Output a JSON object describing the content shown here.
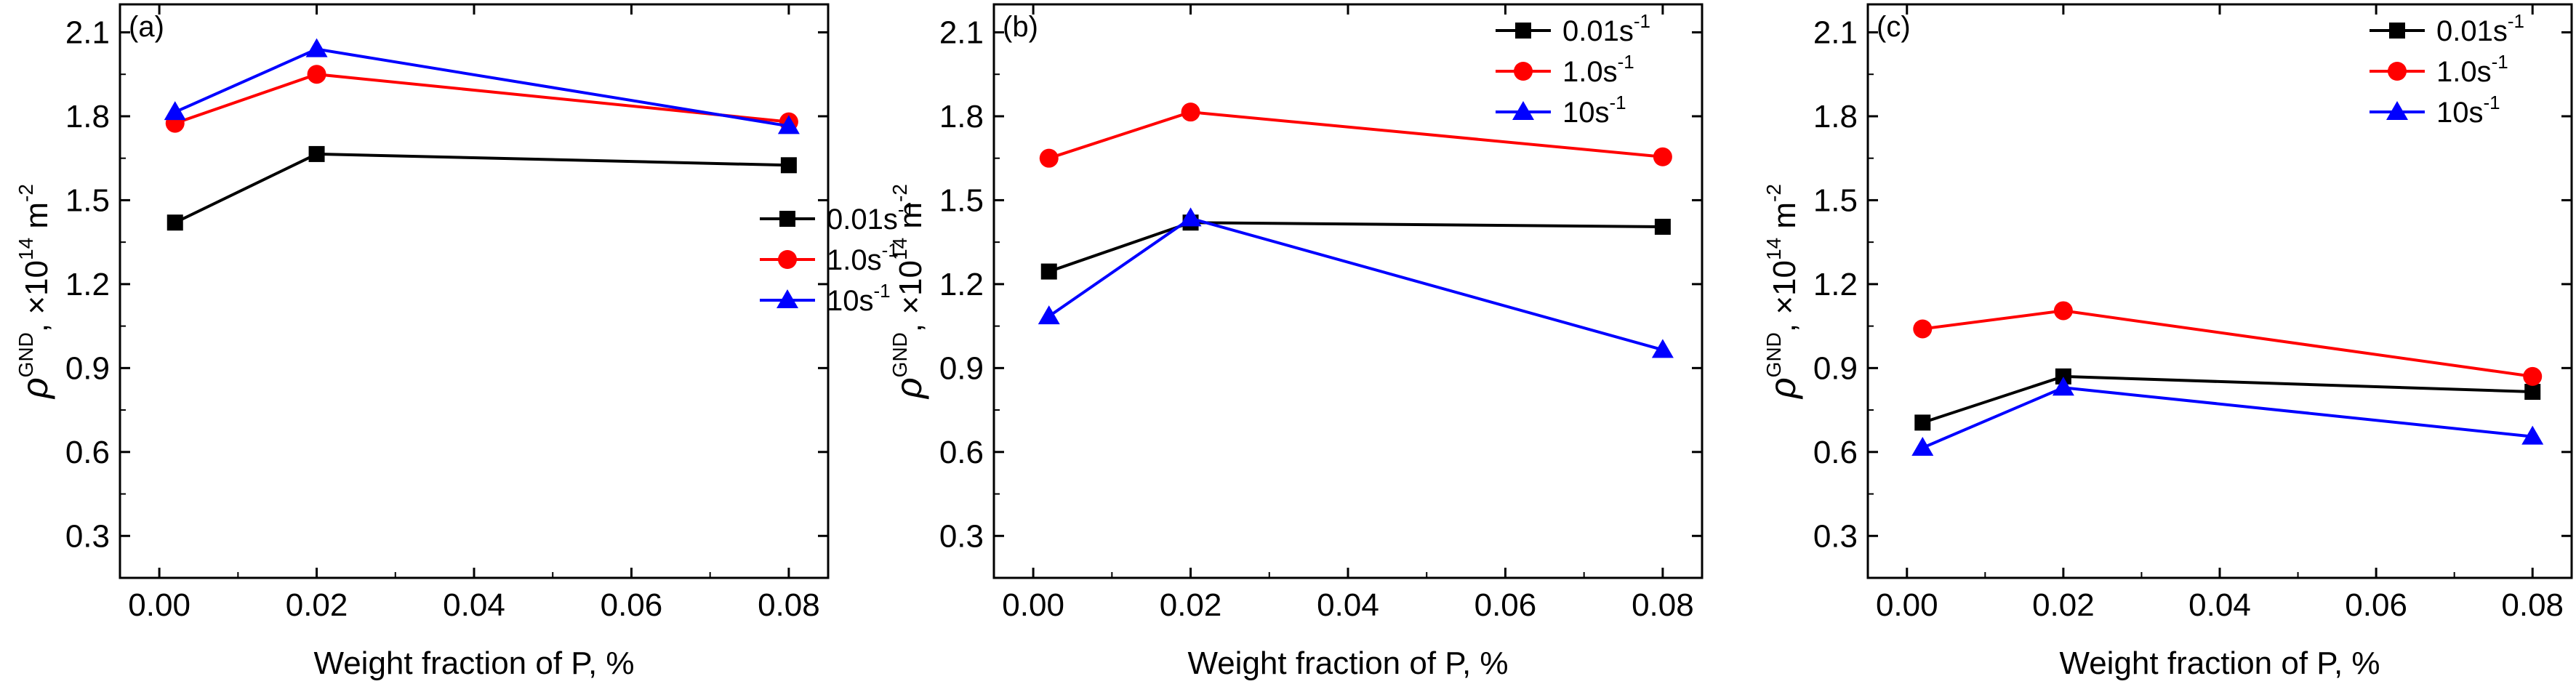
{
  "chart_data": [
    {
      "type": "line",
      "panel_label": "(a)",
      "xlabel": "Weight fraction of P, %",
      "ylabel": "ρGND, ×1014 m-2",
      "ylabel_parts": {
        "sym": "ρ",
        "sup1": "GND",
        "mid": ", ×10",
        "sup2": "14",
        "unit": " m",
        "sup3": "-2"
      },
      "xlim": [
        -0.005,
        0.085
      ],
      "ylim": [
        0.15,
        2.2
      ],
      "x_ticks": [
        "0.00",
        "0.02",
        "0.04",
        "0.06",
        "0.08"
      ],
      "y_ticks": [
        "0.3",
        "0.6",
        "0.9",
        "1.2",
        "1.5",
        "1.8",
        "2.1"
      ],
      "x": [
        0.002,
        0.02,
        0.08
      ],
      "legend_position": "right-middle",
      "series": [
        {
          "name": "0.01s-1",
          "name_base": "0.01s",
          "name_sup": "-1",
          "marker": "square",
          "color": "#000000",
          "values": [
            1.42,
            1.665,
            1.625
          ]
        },
        {
          "name": "1.0s-1",
          "name_base": "1.0s",
          "name_sup": "-1",
          "marker": "circle",
          "color": "#ff0000",
          "values": [
            1.775,
            1.95,
            1.78
          ]
        },
        {
          "name": "10s-1",
          "name_base": "10s",
          "name_sup": "-1",
          "marker": "triangle",
          "color": "#0000ff",
          "values": [
            1.815,
            2.04,
            1.765
          ]
        }
      ]
    },
    {
      "type": "line",
      "panel_label": "(b)",
      "xlabel": "Weight fraction of P, %",
      "ylabel": "ρGND, ×1014 m-2",
      "ylabel_parts": {
        "sym": "ρ",
        "sup1": "GND",
        "mid": ", ×10",
        "sup2": "14",
        "unit": " m",
        "sup3": "-2"
      },
      "xlim": [
        -0.005,
        0.085
      ],
      "ylim": [
        0.15,
        2.2
      ],
      "x_ticks": [
        "0.00",
        "0.02",
        "0.04",
        "0.06",
        "0.08"
      ],
      "y_ticks": [
        "0.3",
        "0.6",
        "0.9",
        "1.2",
        "1.5",
        "1.8",
        "2.1"
      ],
      "x": [
        0.002,
        0.02,
        0.08
      ],
      "legend_position": "top-right",
      "series": [
        {
          "name": "0.01s-1",
          "name_base": "0.01s",
          "name_sup": "-1",
          "marker": "square",
          "color": "#000000",
          "values": [
            1.245,
            1.42,
            1.405
          ]
        },
        {
          "name": "1.0s-1",
          "name_base": "1.0s",
          "name_sup": "-1",
          "marker": "circle",
          "color": "#ff0000",
          "values": [
            1.65,
            1.815,
            1.655
          ]
        },
        {
          "name": "10s-1",
          "name_base": "10s",
          "name_sup": "-1",
          "marker": "triangle",
          "color": "#0000ff",
          "values": [
            1.085,
            1.435,
            0.965
          ]
        }
      ]
    },
    {
      "type": "line",
      "panel_label": "(c)",
      "xlabel": "Weight fraction of P, %",
      "ylabel": "ρGND, ×1014 m-2",
      "ylabel_parts": {
        "sym": "ρ",
        "sup1": "GND",
        "mid": ", ×10",
        "sup2": "14",
        "unit": " m",
        "sup3": "-2"
      },
      "xlim": [
        -0.005,
        0.085
      ],
      "ylim": [
        0.15,
        2.2
      ],
      "x_ticks": [
        "0.00",
        "0.02",
        "0.04",
        "0.06",
        "0.08"
      ],
      "y_ticks": [
        "0.3",
        "0.6",
        "0.9",
        "1.2",
        "1.5",
        "1.8",
        "2.1"
      ],
      "x": [
        0.002,
        0.02,
        0.08
      ],
      "legend_position": "top-right",
      "series": [
        {
          "name": "0.01s-1",
          "name_base": "0.01s",
          "name_sup": "-1",
          "marker": "square",
          "color": "#000000",
          "values": [
            0.705,
            0.87,
            0.815
          ]
        },
        {
          "name": "1.0s-1",
          "name_base": "1.0s",
          "name_sup": "-1",
          "marker": "circle",
          "color": "#ff0000",
          "values": [
            1.04,
            1.105,
            0.87
          ]
        },
        {
          "name": "10s-1",
          "name_base": "10s",
          "name_sup": "-1",
          "marker": "triangle",
          "color": "#0000ff",
          "values": [
            0.615,
            0.83,
            0.655
          ]
        }
      ]
    }
  ]
}
